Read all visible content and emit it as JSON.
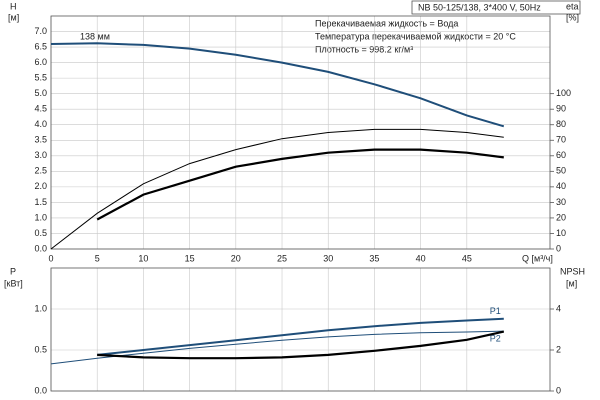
{
  "chart_data": [
    {
      "type": "line",
      "title": "NB 50-125/138, 3*400 V, 50Hz",
      "annotations": [
        "Перекачиваемая жидкость = Вода",
        "Температура перекачиваемой жидкости = 20 °C",
        "Плотность = 998.2 кг/м³",
        "138 мм"
      ],
      "ylabel": "H",
      "yunit": "[м]",
      "y2label": "eta",
      "y2unit": "[%]",
      "xlabel": "Q [м³/ч]",
      "xlim": [
        0,
        54
      ],
      "xticks": [
        0,
        5,
        10,
        15,
        20,
        25,
        30,
        35,
        40,
        45
      ],
      "ylim": [
        0,
        7.5
      ],
      "yticks": [
        {
          "value": 0,
          "label": "0.0"
        },
        0.5,
        {
          "value": 1,
          "label": "1.0"
        },
        1.5,
        {
          "value": 2,
          "label": "2.0"
        },
        2.5,
        {
          "value": 3,
          "label": "3.0"
        },
        3.5,
        {
          "value": 4,
          "label": "4.0"
        },
        4.5,
        {
          "value": 5,
          "label": "5.0"
        },
        5.5,
        {
          "value": 6,
          "label": "6.0"
        },
        6.5,
        {
          "value": 7,
          "label": "7.0"
        }
      ],
      "y2lim": [
        0,
        150
      ],
      "y2ticks": [
        0,
        10,
        20,
        30,
        40,
        50,
        60,
        70,
        80,
        90,
        100
      ],
      "grid": true,
      "x": [
        0,
        5,
        10,
        15,
        20,
        25,
        30,
        35,
        40,
        45,
        49
      ],
      "series": [
        {
          "color": "#1f4e79",
          "width": 2,
          "axis": "y",
          "values": [
            6.6,
            6.62,
            6.57,
            6.45,
            6.25,
            6.0,
            5.7,
            5.3,
            4.85,
            4.3,
            3.95
          ]
        },
        {
          "color": "#000000",
          "width": 1,
          "axis": "y2",
          "values": [
            0,
            23,
            42,
            55,
            64,
            71,
            75,
            77,
            77,
            75,
            72
          ]
        },
        {
          "color": "#000000",
          "width": 2.2,
          "axis": "y2",
          "values": [
            null,
            19,
            35,
            44,
            53,
            58,
            62,
            64,
            64,
            62,
            59
          ]
        }
      ]
    },
    {
      "type": "line",
      "ylabel": "P",
      "yunit": "[кВт]",
      "y2label": "NPSH",
      "y2unit": "[м]",
      "xlim": [
        0,
        54
      ],
      "ylim": [
        0,
        1.5
      ],
      "yticks": [
        {
          "value": 0,
          "label": "0.0"
        },
        0.5,
        {
          "value": 1,
          "label": "1.0"
        }
      ],
      "y2lim": [
        0,
        6
      ],
      "y2ticks": [
        0,
        2,
        4
      ],
      "grid": true,
      "x": [
        0,
        5,
        10,
        15,
        20,
        25,
        30,
        35,
        40,
        45,
        49
      ],
      "series": [
        {
          "name": "P1",
          "color": "#1f4e79",
          "width": 2,
          "axis": "y",
          "values": [
            null,
            0.44,
            0.5,
            0.56,
            0.62,
            0.68,
            0.74,
            0.79,
            0.83,
            0.86,
            0.88
          ]
        },
        {
          "name": "P2",
          "color": "#1f4e79",
          "width": 1,
          "axis": "y",
          "values": [
            0.33,
            0.4,
            0.46,
            0.52,
            0.57,
            0.62,
            0.66,
            0.69,
            0.71,
            0.72,
            0.73
          ]
        },
        {
          "color": "#000000",
          "width": 2.2,
          "axis": "y2",
          "values": [
            null,
            1.76,
            1.64,
            1.6,
            1.6,
            1.64,
            1.76,
            1.96,
            2.2,
            2.5,
            2.9
          ]
        }
      ]
    }
  ]
}
